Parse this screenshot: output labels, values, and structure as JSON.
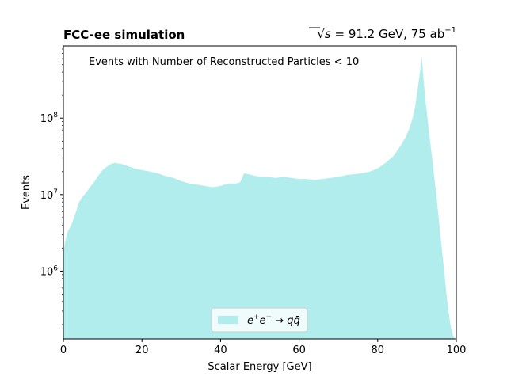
{
  "chart_data": {
    "type": "area",
    "title_left": "FCC-ee simulation",
    "title_right_prefix": "√s",
    "title_right_text": " = 91.2 GeV, 75 ab",
    "title_right_sup": "−1",
    "annotation": "Events with Number of Reconstructed Particles < 10",
    "xlabel": "Scalar Energy [GeV]",
    "ylabel": "Events",
    "xlim": [
      0,
      100
    ],
    "ylim": [
      130000,
      880000000
    ],
    "yscale": "log",
    "x_ticks": [
      0,
      20,
      40,
      60,
      80,
      100
    ],
    "x_tick_labels": [
      "0",
      "20",
      "40",
      "60",
      "80",
      "100"
    ],
    "y_ticks": [
      1000000,
      10000000,
      100000000
    ],
    "y_tick_labels": [
      "10^6",
      "10^7",
      "10^8"
    ],
    "legend_location": "bottom-center",
    "fill_color": "#b2eded",
    "series": [
      {
        "name": "e+e− → q q̄",
        "x": [
          0,
          0.5,
          1,
          2,
          3,
          4,
          5,
          6,
          7,
          8,
          9,
          10,
          11,
          12,
          13,
          14,
          15,
          16,
          17,
          18,
          19,
          20,
          22,
          24,
          26,
          28,
          30,
          32,
          34,
          36,
          38,
          40,
          42,
          44,
          45,
          46,
          48,
          50,
          52,
          54,
          56,
          58,
          60,
          62,
          64,
          66,
          68,
          70,
          72,
          74,
          76,
          78,
          80,
          82,
          84,
          86,
          87,
          88,
          89,
          89.5,
          90,
          90.5,
          91,
          91.2,
          91.5,
          92,
          92.5,
          93,
          93.5,
          94,
          94.5,
          95,
          95.5,
          96,
          96.5,
          97,
          97.5,
          98,
          98.5,
          99,
          99.5
        ],
        "values": [
          1800000,
          2500000,
          3200000,
          4000000,
          5500000,
          8000000,
          9500000,
          11000000,
          13000000,
          15000000,
          18000000,
          21000000,
          23000000,
          25000000,
          26000000,
          25500000,
          25000000,
          24000000,
          23000000,
          22000000,
          21500000,
          21000000,
          20000000,
          19000000,
          17500000,
          16500000,
          15000000,
          14000000,
          13500000,
          13000000,
          12500000,
          13000000,
          14000000,
          14000000,
          14500000,
          19000000,
          18000000,
          17000000,
          17000000,
          16500000,
          17000000,
          16500000,
          16000000,
          16000000,
          15500000,
          16000000,
          16500000,
          17000000,
          18000000,
          18500000,
          19000000,
          20000000,
          22000000,
          26000000,
          32000000,
          45000000,
          55000000,
          72000000,
          105000000,
          140000000,
          210000000,
          320000000,
          500000000,
          650000000,
          420000000,
          200000000,
          120000000,
          70000000,
          42000000,
          26000000,
          15000000,
          9000000,
          5000000,
          2800000,
          1600000,
          900000,
          500000,
          300000,
          200000,
          150000,
          135000
        ]
      }
    ]
  }
}
